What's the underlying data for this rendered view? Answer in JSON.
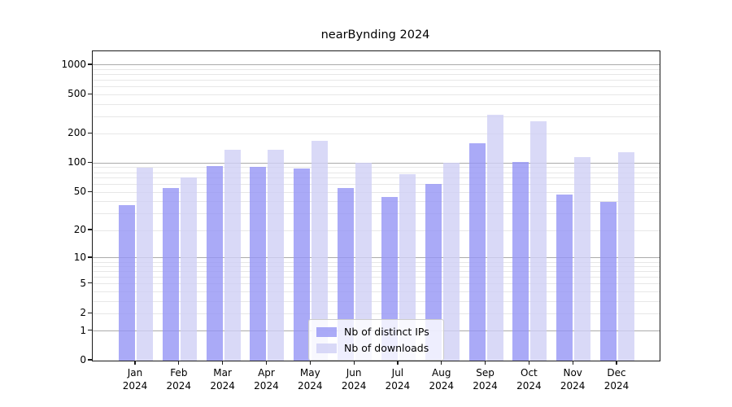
{
  "figure": {
    "background": "#ffffff"
  },
  "chart_data": {
    "type": "bar",
    "title": "nearBynding 2024",
    "categories": [
      "Jan",
      "Feb",
      "Mar",
      "Apr",
      "May",
      "Jun",
      "Jul",
      "Aug",
      "Sep",
      "Oct",
      "Nov",
      "Dec"
    ],
    "x_tick_second_line": "2024",
    "series": [
      {
        "name": "Nb of distinct IPs",
        "color": "#9595f5",
        "values": [
          37,
          55,
          94,
          92,
          89,
          55,
          45,
          61,
          159,
          102,
          48,
          40
        ]
      },
      {
        "name": "Nb of downloads",
        "color": "#d0d0f5",
        "values": [
          90,
          72,
          137,
          137,
          170,
          100,
          77,
          100,
          310,
          270,
          115,
          130
        ]
      }
    ],
    "bar_opacity": 0.8,
    "y_scale": "log1p",
    "y_ticks": [
      0,
      1,
      2,
      5,
      10,
      20,
      50,
      100,
      200,
      500,
      1000
    ],
    "y_minor_ticks": [
      3,
      4,
      6,
      7,
      8,
      9,
      30,
      40,
      60,
      70,
      80,
      90,
      300,
      400,
      600,
      700,
      800,
      900
    ],
    "y_decade_ticks": [
      1,
      10,
      100,
      1000
    ],
    "ylim": [
      0,
      1360
    ],
    "grid": "on",
    "legend_position": "lower center"
  },
  "colors": {
    "bar_distinct_ips": "#9595f5",
    "bar_downloads": "#d0d0f5",
    "grid_decade": "#ababab",
    "grid_minor": "#e7e7e7",
    "axis": "#1a1a1a",
    "legend_border": "#cccccc",
    "legend_bg": "#ffffffcc",
    "text": "#000000"
  }
}
